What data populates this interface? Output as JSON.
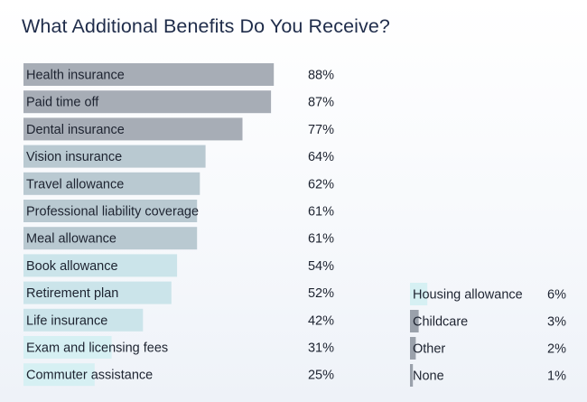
{
  "chart_data": {
    "type": "bar",
    "orientation": "horizontal",
    "title": "What Additional Benefits Do You Receive?",
    "unit": "%",
    "xlim": [
      0,
      100
    ],
    "series": [
      {
        "values": [
          88,
          87,
          77,
          64,
          62,
          61,
          61,
          54,
          52,
          42,
          31,
          25,
          6,
          3,
          2,
          1
        ]
      }
    ],
    "categories": [
      "Health insurance",
      "Paid time off",
      "Dental insurance",
      "Vision insurance",
      "Travel allowance",
      "Professional liability coverage",
      "Meal allowance",
      "Book allowance",
      "Retirement plan",
      "Life insurance",
      "Exam and licensing fees",
      "Commuter assistance",
      "Housing allowance",
      "Childcare",
      "Other",
      "None"
    ],
    "value_labels": [
      "88%",
      "87%",
      "77%",
      "64%",
      "62%",
      "61%",
      "61%",
      "54%",
      "52%",
      "42%",
      "31%",
      "25%",
      "6%",
      "3%",
      "2%",
      "1%"
    ],
    "columns": [
      {
        "start": 0,
        "count": 12
      },
      {
        "start": 12,
        "count": 4
      }
    ],
    "colors": {
      "high": "#a7adb6",
      "mid": "#b9c9d1",
      "low": "#cbe4ea",
      "lowest": "#d6f0f3",
      "tiny": "#9aa1ab"
    },
    "grid": false,
    "legend": "none"
  }
}
